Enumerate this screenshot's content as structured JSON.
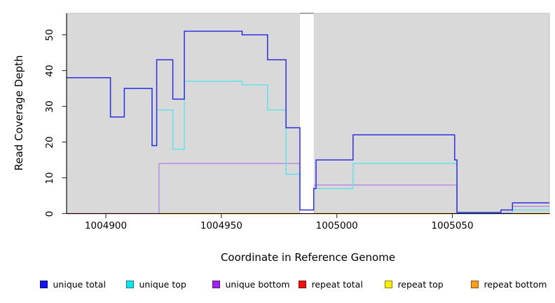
{
  "chart_data": {
    "type": "line",
    "step_style": "post",
    "title": "",
    "xlabel": "Coordinate in Reference Genome",
    "ylabel": "Read Coverage Depth",
    "xlim": [
      1004883,
      1005092
    ],
    "ylim": [
      0,
      56
    ],
    "grid": false,
    "legend_position": "bottom",
    "plot_bg_color": "#d9d9d9",
    "plot_border_color": "#c2c2c2",
    "x_ticks": [
      1004900,
      1004950,
      1005000,
      1005050
    ],
    "y_ticks": [
      0,
      10,
      20,
      30,
      40,
      50
    ],
    "gap_region": {
      "x_start": 1004984,
      "x_end": 1004990,
      "color": "#ffffff",
      "cap_color": "#8c8c8c"
    },
    "legend": [
      "unique total",
      "unique top",
      "unique bottom",
      "repeat total",
      "repeat top",
      "repeat bottom"
    ],
    "series": [
      {
        "name": "repeat total",
        "legend_color": "#ee1111",
        "line_color": "#d4708a",
        "steps": [
          [
            1004883,
            0
          ]
        ],
        "x_end": 1005092
      },
      {
        "name": "repeat top",
        "legend_color": "#f7ec13",
        "line_color": "#f0e442",
        "steps": [
          [
            1004923,
            0
          ]
        ],
        "x_end": 1005092
      },
      {
        "name": "repeat bottom",
        "legend_color": "#ff9d23",
        "line_color": "#ffa033",
        "steps": [
          [
            1004923,
            0
          ]
        ],
        "x_end": 1005092
      },
      {
        "name": "unique bottom",
        "legend_color": "#a125ef",
        "line_color": "#bb8fe0",
        "steps": [
          [
            1004923,
            0
          ],
          [
            1004923,
            14
          ],
          [
            1004984,
            0
          ],
          [
            1004990,
            8
          ],
          [
            1005052,
            0
          ],
          [
            1005076,
            2
          ]
        ],
        "x_end": 1005092
      },
      {
        "name": "unique top",
        "legend_color": "#10e6ee",
        "line_color": "#62e2ec",
        "steps": [
          [
            1004883,
            38
          ],
          [
            1004902,
            27
          ],
          [
            1004908,
            35
          ],
          [
            1004920,
            19
          ],
          [
            1004922,
            29
          ],
          [
            1004929,
            18
          ],
          [
            1004934,
            37
          ],
          [
            1004959,
            36
          ],
          [
            1004970,
            29
          ],
          [
            1004978,
            11
          ],
          [
            1004984,
            1
          ],
          [
            1004990,
            7
          ],
          [
            1005007,
            14
          ],
          [
            1005052,
            0
          ],
          [
            1005076,
            1
          ]
        ],
        "x_end": 1005092
      },
      {
        "name": "unique total",
        "legend_color": "#1414ee",
        "line_color": "#2e2ee4",
        "steps": [
          [
            1004883,
            38
          ],
          [
            1004902,
            27
          ],
          [
            1004908,
            35
          ],
          [
            1004920,
            19
          ],
          [
            1004922,
            43
          ],
          [
            1004929,
            32
          ],
          [
            1004934,
            51
          ],
          [
            1004959,
            50
          ],
          [
            1004970,
            43
          ],
          [
            1004978,
            24
          ],
          [
            1004984,
            1
          ],
          [
            1004990,
            7
          ],
          [
            1004991,
            15
          ],
          [
            1005007,
            22
          ],
          [
            1005051,
            15
          ],
          [
            1005052,
            0
          ],
          [
            1005071,
            1
          ],
          [
            1005076,
            3
          ]
        ],
        "x_end": 1005092
      }
    ]
  }
}
